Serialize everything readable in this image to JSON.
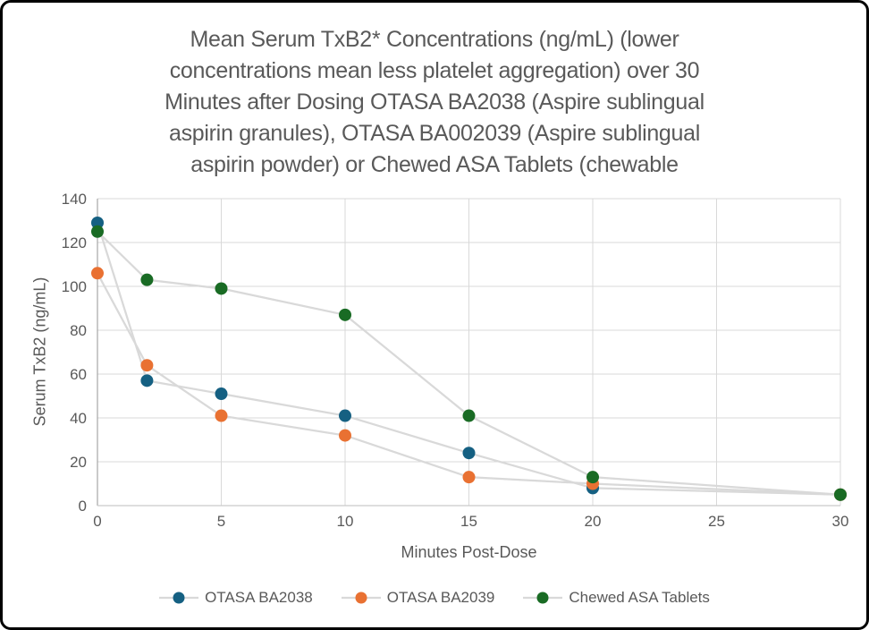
{
  "chart_data": {
    "type": "scatter",
    "title": "Mean Serum TxB2* Concentrations (ng/mL) (lower concentrations mean less platelet aggregation) over 30 Minutes after Dosing OTASA BA2038 (Aspire sublingual aspirin granules), OTASA BA002039 (Aspire sublingual aspirin powder) or Chewed ASA Tablets (chewable",
    "title_lines": [
      "Mean Serum TxB2* Concentrations (ng/mL) (lower",
      "concentrations mean less platelet aggregation) over 30",
      "Minutes after Dosing OTASA BA2038 (Aspire sublingual",
      "aspirin granules), OTASA BA002039 (Aspire sublingual",
      "aspirin powder) or Chewed ASA Tablets (chewable"
    ],
    "xlabel": "Minutes Post-Dose",
    "ylabel": "Serum TxB2 (ng/mL)",
    "x": [
      0,
      2,
      5,
      10,
      15,
      20,
      30
    ],
    "series": [
      {
        "name": "OTASA BA2038",
        "color": "#156082",
        "values": [
          129,
          57,
          51,
          41,
          24,
          8,
          5
        ]
      },
      {
        "name": "OTASA BA2039",
        "color": "#E97132",
        "values": [
          106,
          64,
          41,
          32,
          13,
          10,
          5
        ]
      },
      {
        "name": "Chewed ASA Tablets",
        "color": "#196B24",
        "values": [
          125,
          103,
          99,
          87,
          41,
          13,
          5
        ]
      }
    ],
    "xlim": [
      0,
      30
    ],
    "ylim": [
      0,
      140
    ],
    "x_ticks": [
      0,
      5,
      10,
      15,
      20,
      25,
      30
    ],
    "y_ticks": [
      0,
      20,
      40,
      60,
      80,
      100,
      120,
      140
    ],
    "grid": true,
    "legend_position": "bottom",
    "styles": {
      "series_line_color": "#D9D9D9",
      "gridline_color": "#D9D9D9",
      "y_axis_line_color": "#A6A6A6",
      "x_axis_line_color": "#C9C9C9",
      "tick_label_color": "#595959",
      "title_color": "#595959",
      "marker_radius": 7
    }
  }
}
